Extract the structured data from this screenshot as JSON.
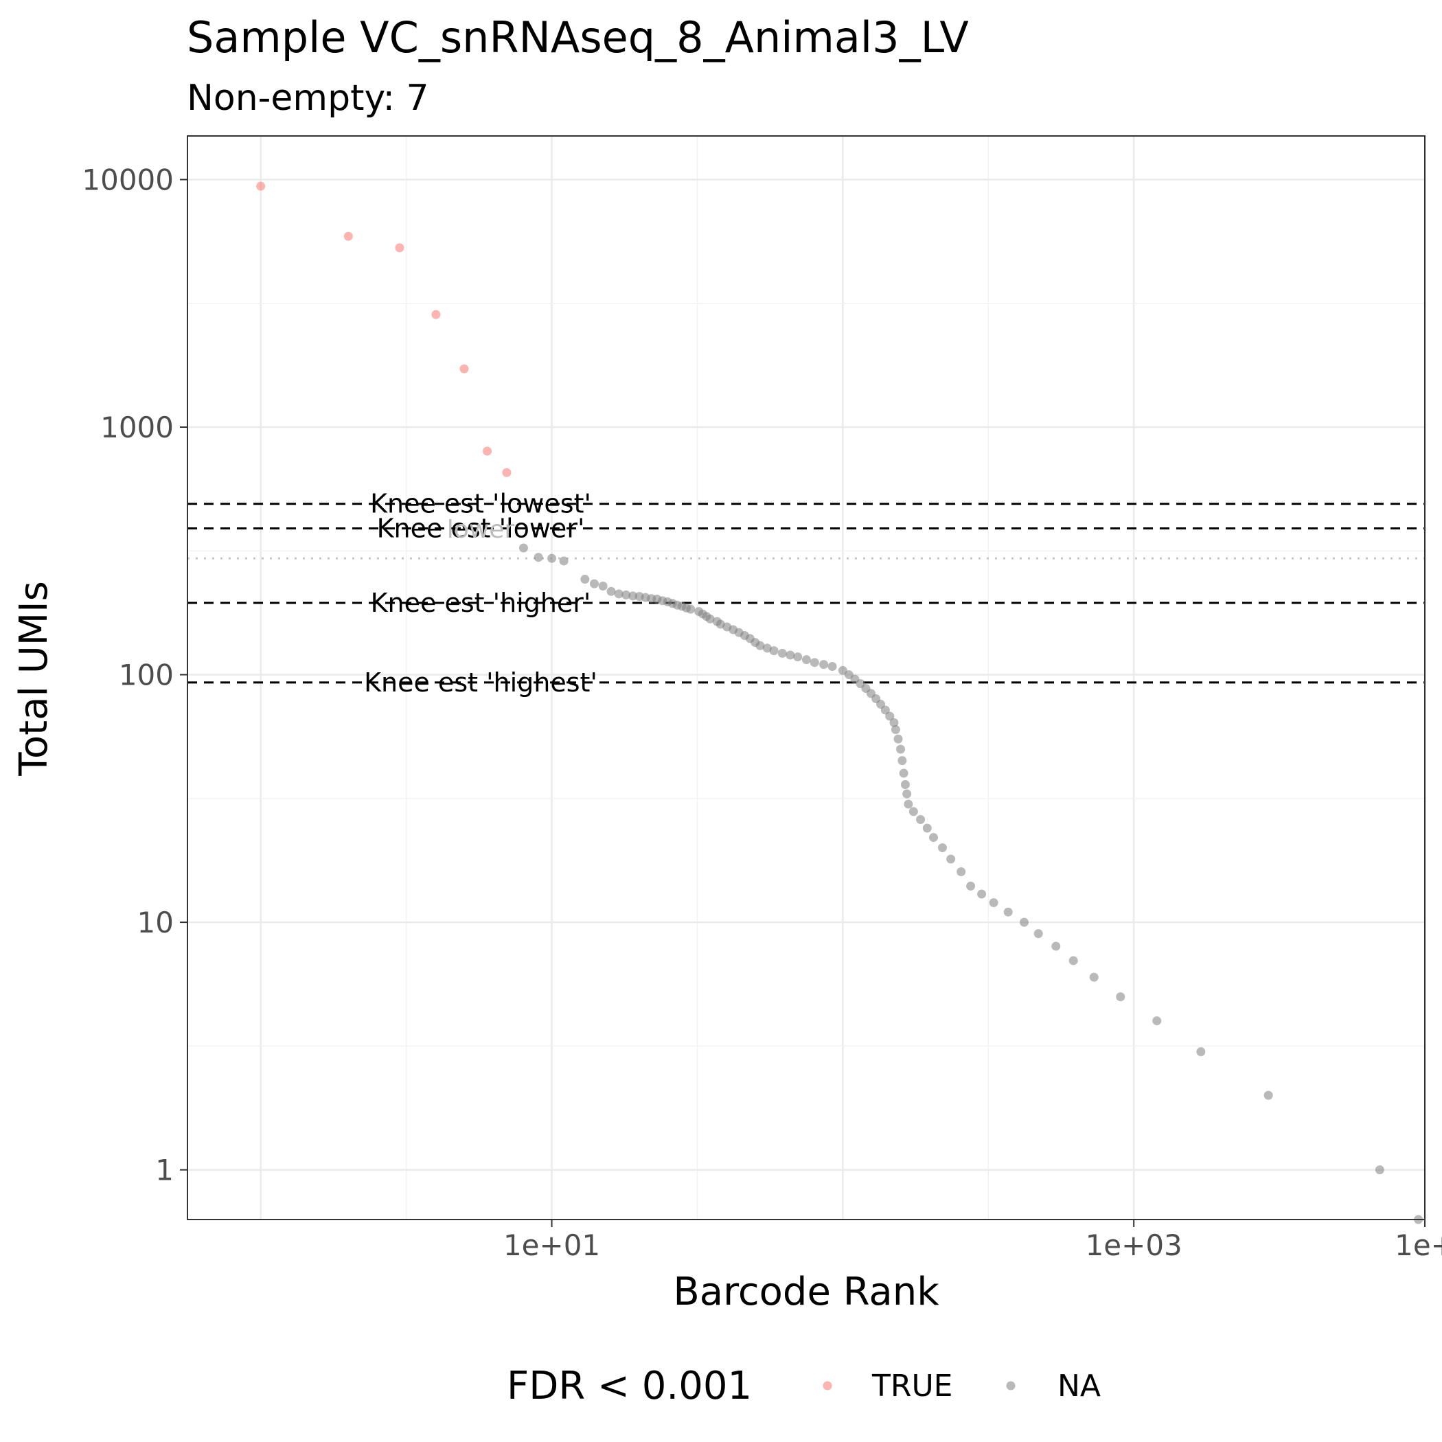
{
  "chart_data": {
    "type": "scatter",
    "title": "Sample VC_snRNAseq_8_Animal3_LV",
    "subtitle": "Non-empty: 7",
    "xlabel": "Barcode Rank",
    "ylabel": "Total UMIs",
    "x_scale": "log10",
    "y_scale": "log10",
    "xlim": [
      0.56,
      10000
    ],
    "ylim": [
      0.63,
      15000
    ],
    "x_ticks": [
      {
        "value": 10,
        "label": "1e+01"
      },
      {
        "value": 1000,
        "label": "1e+03"
      },
      {
        "value": 10000,
        "label": "1e+"
      }
    ],
    "y_ticks": [
      {
        "value": 10000,
        "label": "10000"
      },
      {
        "value": 1000,
        "label": "1000"
      },
      {
        "value": 100,
        "label": "100"
      },
      {
        "value": 10,
        "label": "10"
      },
      {
        "value": 1,
        "label": "1"
      }
    ],
    "grid": true,
    "legend": {
      "title": "FDR < 0.001",
      "position": "bottom",
      "entries": [
        {
          "label": "TRUE",
          "color": "#f8766d"
        },
        {
          "label": "NA",
          "color": "#7f7f7f"
        }
      ]
    },
    "hlines": [
      {
        "y": 490,
        "label": "Knee est 'lowest'",
        "style": "dashed"
      },
      {
        "y": 390,
        "label": "Knee est 'lower'",
        "style": "dashed"
      },
      {
        "y": 195,
        "label": "Knee est 'higher'",
        "style": "dashed"
      },
      {
        "y": 93,
        "label": "Knee est 'highest'",
        "style": "dashed"
      },
      {
        "y": 295,
        "label": "lower",
        "style": "dotted"
      }
    ],
    "series": [
      {
        "name": "TRUE",
        "color": "#f8766d",
        "points": [
          [
            1,
            9400
          ],
          [
            2,
            5900
          ],
          [
            3,
            5300
          ],
          [
            4,
            2850
          ],
          [
            5,
            1720
          ],
          [
            6,
            800
          ],
          [
            7,
            655
          ]
        ]
      },
      {
        "name": "NA",
        "color": "#7f7f7f",
        "points": [
          [
            8,
            325
          ],
          [
            9,
            298
          ],
          [
            10,
            295
          ],
          [
            11,
            288
          ],
          [
            13,
            243
          ],
          [
            14,
            233
          ],
          [
            15,
            228
          ],
          [
            16,
            217
          ],
          [
            17,
            212
          ],
          [
            18,
            210
          ],
          [
            19,
            208
          ],
          [
            20,
            207
          ],
          [
            21,
            205
          ],
          [
            22,
            203
          ],
          [
            23,
            202
          ],
          [
            24,
            199
          ],
          [
            25,
            197
          ],
          [
            26,
            194
          ],
          [
            27,
            191
          ],
          [
            28,
            189
          ],
          [
            29,
            186
          ],
          [
            30,
            184
          ],
          [
            32,
            180
          ],
          [
            33,
            176
          ],
          [
            34,
            172
          ],
          [
            35,
            168
          ],
          [
            37,
            164
          ],
          [
            38,
            160
          ],
          [
            40,
            156
          ],
          [
            42,
            152
          ],
          [
            44,
            148
          ],
          [
            46,
            144
          ],
          [
            48,
            140
          ],
          [
            50,
            135
          ],
          [
            52,
            131
          ],
          [
            55,
            128
          ],
          [
            58,
            125
          ],
          [
            62,
            122
          ],
          [
            66,
            120
          ],
          [
            70,
            118
          ],
          [
            75,
            115
          ],
          [
            80,
            112
          ],
          [
            86,
            110
          ],
          [
            92,
            108
          ],
          [
            100,
            104
          ],
          [
            105,
            100
          ],
          [
            110,
            96
          ],
          [
            115,
            92
          ],
          [
            120,
            88
          ],
          [
            125,
            84
          ],
          [
            130,
            80
          ],
          [
            135,
            76
          ],
          [
            140,
            72
          ],
          [
            145,
            68
          ],
          [
            150,
            64
          ],
          [
            152,
            60
          ],
          [
            155,
            55
          ],
          [
            158,
            50
          ],
          [
            160,
            45
          ],
          [
            162,
            40
          ],
          [
            164,
            36
          ],
          [
            166,
            33
          ],
          [
            168,
            30
          ],
          [
            175,
            28
          ],
          [
            185,
            26
          ],
          [
            195,
            24
          ],
          [
            205,
            22
          ],
          [
            220,
            20
          ],
          [
            235,
            18
          ],
          [
            255,
            16
          ],
          [
            275,
            14
          ],
          [
            300,
            13
          ],
          [
            330,
            12
          ],
          [
            370,
            11
          ],
          [
            420,
            10
          ],
          [
            470,
            9
          ],
          [
            540,
            8
          ],
          [
            620,
            7
          ],
          [
            730,
            6
          ],
          [
            900,
            5
          ],
          [
            1200,
            4
          ],
          [
            1700,
            3
          ],
          [
            2900,
            2
          ],
          [
            7000,
            1
          ],
          [
            9500,
            0.63
          ]
        ]
      }
    ]
  }
}
